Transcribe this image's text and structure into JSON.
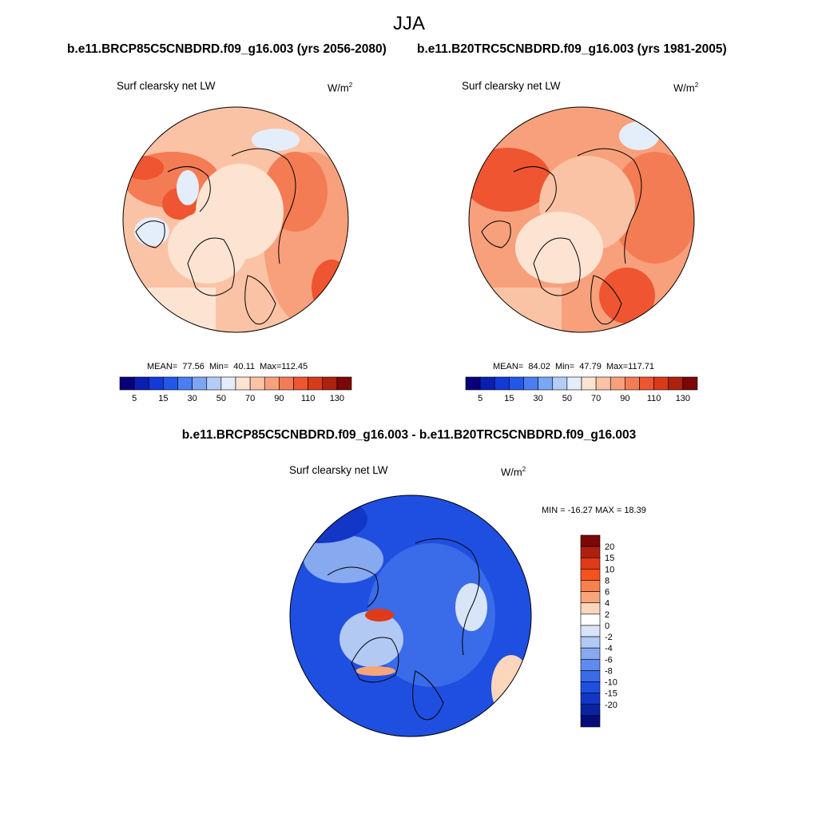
{
  "title": "JJA",
  "panels": [
    {
      "case_title": "b.e11.BRCP85C5CNBDRD.f09_g16.003 (yrs 2056-2080)",
      "variable": "Surf clearsky net LW",
      "units_base": "W/m",
      "units_exp": "2",
      "stats": {
        "mean_label": "MEAN=",
        "mean": "77.56",
        "min_label": "Min=",
        "min": "40.11",
        "max_label": "Max=",
        "max": "112.45"
      }
    },
    {
      "case_title": "b.e11.B20TRC5CNBDRD.f09_g16.003 (yrs 1981-2005)",
      "variable": "Surf clearsky net LW",
      "units_base": "W/m",
      "units_exp": "2",
      "stats": {
        "mean_label": "MEAN=",
        "mean": "84.02",
        "min_label": "Min=",
        "min": "47.79",
        "max_label": "Max=",
        "max": "117.71"
      }
    }
  ],
  "abs_colorbar": {
    "colors": [
      "#08007a",
      "#0a1fb0",
      "#1339d6",
      "#2257e8",
      "#4a7ef2",
      "#7ca5f5",
      "#b3cdf7",
      "#e4eefa",
      "#fde4d2",
      "#fbc3a5",
      "#f8a07c",
      "#f47c55",
      "#ee5530",
      "#d83a1a",
      "#ae200f",
      "#7c0707"
    ],
    "labels": [
      "5",
      "15",
      "30",
      "50",
      "70",
      "90",
      "110",
      "130"
    ]
  },
  "diff": {
    "title": "b.e11.BRCP85C5CNBDRD.f09_g16.003 - b.e11.B20TRC5CNBDRD.f09_g16.003",
    "variable": "Surf clearsky net LW",
    "units_base": "W/m",
    "units_exp": "2",
    "minmax": "MIN = -16.27 MAX =  18.39",
    "colorbar": {
      "colors": [
        "#7c0707",
        "#ae200f",
        "#e03a17",
        "#f5521f",
        "#f6814d",
        "#f8a57a",
        "#fcd6bc",
        "#ffffff",
        "#d8e5f8",
        "#b1c9f3",
        "#86a9ef",
        "#5f8bec",
        "#3a6be8",
        "#1f4fe0",
        "#1236c6",
        "#0a24a0",
        "#070c7a"
      ],
      "labels": [
        "20",
        "15",
        "10",
        "8",
        "6",
        "4",
        "2",
        "0",
        "-2",
        "-4",
        "-6",
        "-8",
        "-10",
        "-15",
        "-20"
      ]
    }
  }
}
